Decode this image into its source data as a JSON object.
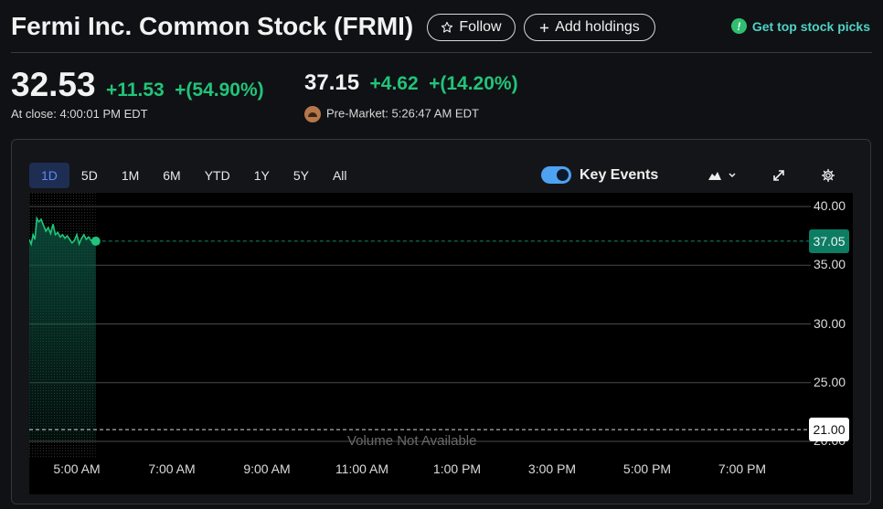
{
  "header": {
    "title": "Fermi Inc. Common Stock (FRMI)",
    "follow_icon": "star-outline-icon",
    "follow_label": "Follow",
    "add_icon": "plus-icon",
    "add_label": "Add holdings",
    "picks_icon": "info-badge-icon",
    "picks_label": "Get top stock picks"
  },
  "quote": {
    "close_price": "32.53",
    "close_change": "+11.53",
    "close_change_pct": "+(54.90%)",
    "close_time": "At close: 4:00:01 PM EDT",
    "pre_price": "37.15",
    "pre_change": "+4.62",
    "pre_change_pct": "+(14.20%)",
    "pre_time": "Pre-Market: 5:26:47 AM EDT",
    "pre_icon": "sunrise-icon"
  },
  "chart_controls": {
    "ranges": [
      "1D",
      "5D",
      "1M",
      "6M",
      "YTD",
      "1Y",
      "5Y",
      "All"
    ],
    "active_range": "1D",
    "key_events_label": "Key Events",
    "key_events_on": true,
    "chart_type_icon": "mountain-chart-icon",
    "expand_icon": "expand-arrows-icon",
    "settings_icon": "gear-icon"
  },
  "colors": {
    "up_green": "#21c47a",
    "accent_blue": "#5b8cf2",
    "badge_green": "#0c7d62"
  },
  "chart_data": {
    "type": "line",
    "x_ticks": [
      "5:00 AM",
      "7:00 AM",
      "9:00 AM",
      "11:00 AM",
      "1:00 PM",
      "3:00 PM",
      "5:00 PM",
      "7:00 PM"
    ],
    "y_ticks": [
      "40.00",
      "35.00",
      "30.00",
      "25.00",
      "20.00"
    ],
    "ylim": [
      20,
      40
    ],
    "session_hours": [
      4,
      20
    ],
    "current_price_label": "37.05",
    "current_price": 37.05,
    "prev_close_label": "21.00",
    "prev_close": 21.0,
    "volume_note": "Volume Not Available",
    "series": [
      {
        "x_hours": [
          4.0,
          4.04,
          4.08,
          4.12,
          4.16,
          4.2,
          4.25,
          4.3,
          4.35,
          4.4,
          4.45,
          4.5,
          4.55,
          4.6,
          4.65,
          4.7,
          4.75,
          4.8,
          4.85,
          4.9,
          4.95,
          5.0,
          5.05,
          5.1,
          5.15,
          5.2,
          5.25,
          5.3,
          5.35,
          5.4
        ],
        "values": [
          37.2,
          36.8,
          37.6,
          37.2,
          39.0,
          38.7,
          38.9,
          38.4,
          37.9,
          38.2,
          37.7,
          38.5,
          37.6,
          37.8,
          37.4,
          37.6,
          37.3,
          37.5,
          37.2,
          36.9,
          37.1,
          37.6,
          36.8,
          37.3,
          37.6,
          37.2,
          37.4,
          37.1,
          37.0,
          37.05
        ]
      }
    ]
  }
}
